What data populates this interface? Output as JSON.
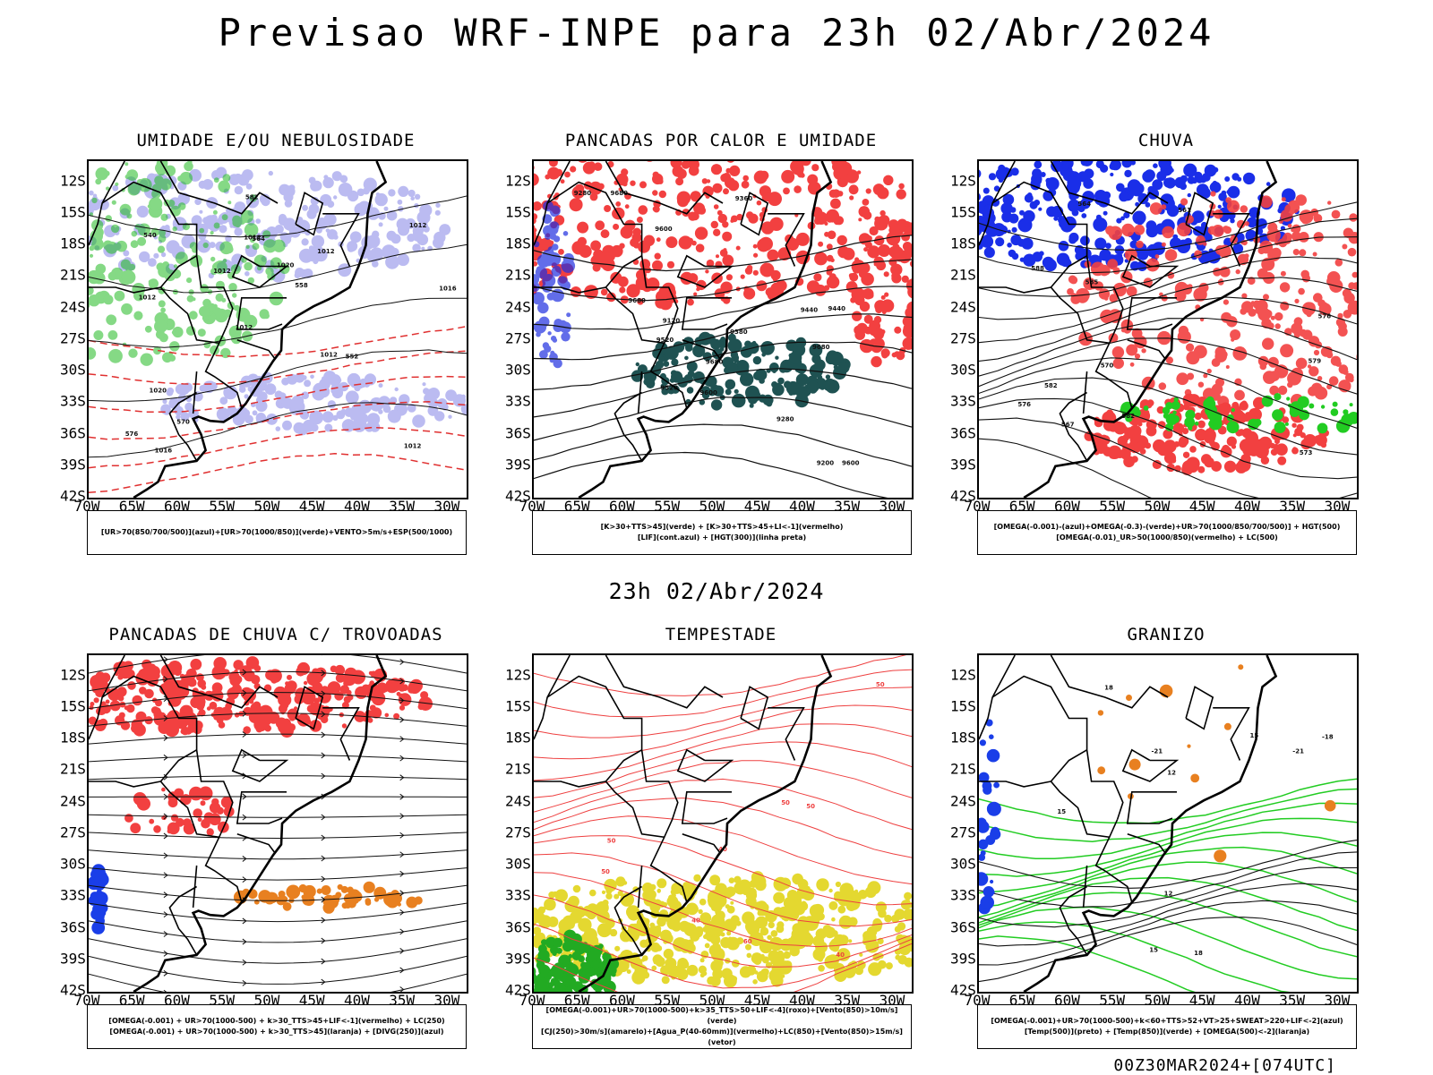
{
  "title": "Previsao WRF-INPE  para 23h 02/Abr/2024",
  "mid_time": "23h 02/Abr/2024",
  "run_stamp": "00Z30MAR2024+[074UTC]",
  "axes": {
    "lat_ticks": [
      "12S",
      "15S",
      "18S",
      "21S",
      "24S",
      "27S",
      "30S",
      "33S",
      "36S",
      "39S",
      "42S"
    ],
    "lon_ticks": [
      "70W",
      "65W",
      "60W",
      "55W",
      "50W",
      "45W",
      "40W",
      "35W",
      "30W"
    ],
    "lon_range": [
      -70,
      -28
    ],
    "lat_range": [
      -42,
      -10
    ]
  },
  "chart_data": [
    {
      "type": "heatmap",
      "title": "UMIDADE E/OU NEBULOSIDADE",
      "caption": [
        "[UR>70(850/700/500)](azul)+[UR>70(1000/850)](verde)+VENTO>5m/s+ESP(500/1000)"
      ],
      "colors": {
        "blue": "#b4b4f0",
        "green": "#22bb22",
        "red_dash": "#e03030"
      },
      "contour_labels": [
        "1012",
        "1012",
        "1012",
        "1012",
        "1012",
        "1016",
        "1012",
        "1020",
        "1020",
        "1012",
        "576",
        "570",
        "564",
        "558",
        "552",
        "540",
        "582",
        "1016",
        "1012"
      ]
    },
    {
      "type": "heatmap",
      "title": "PANCADAS POR CALOR E UMIDADE",
      "caption": [
        "[K>30+TTS>45](verde) + [K>30+TTS>45+LI<-1](vermelho)",
        "[LIF](cont.azul) + [HGT(300)](linha preta)"
      ],
      "colors": {
        "red": "#f24040",
        "darkgreen": "#1f5252",
        "blue": "#2030e0"
      },
      "contour_labels": [
        "9680",
        "9680",
        "9680",
        "9680",
        "9600",
        "9600",
        "9600",
        "9520",
        "9520",
        "9440",
        "9440",
        "9360",
        "9280",
        "9200",
        "9120",
        "9280",
        "9380"
      ]
    },
    {
      "type": "heatmap",
      "title": "CHUVA",
      "caption": [
        "[OMEGA(-0.001)-(azul)+OMEGA(-0.3)-(verde)+UR>70(1000/850/700/500)] + HGT(500)",
        "[OMEGA(-0.01)_UR>50(1000/850)(vermelho) + LC(500)"
      ],
      "colors": {
        "blue": "#1a2ee8",
        "green": "#22cc22",
        "red": "#f24040"
      },
      "contour_labels": [
        "585",
        "582",
        "588",
        "582",
        "579",
        "576",
        "573",
        "570",
        "567",
        "564",
        "561",
        "576"
      ]
    },
    {
      "type": "heatmap",
      "title": "PANCADAS DE CHUVA C/ TROVOADAS",
      "caption": [
        "[OMEGA(-0.001) + UR>70(1000-500) + k>30_TTS>45+LIF<-1](vermelho) + LC(250)",
        "[OMEGA(-0.001) + UR>70(1000-500) + k>30_TTS>45](laranja) + [DIVG(250)](azul)"
      ],
      "colors": {
        "red": "#f24040",
        "orange": "#e88020",
        "blue": "#1a3ee8"
      },
      "contour_labels": []
    },
    {
      "type": "heatmap",
      "title": "TEMPESTADE",
      "caption": [
        "[OMEGA(-0.001)+UR>70(1000-500)+k>35_TTS>50+LIF<-4](roxo)+[Vento(850)>10m/s](verde)",
        "[CJ(250)>30m/s](amarelo)+[Agua_P(40-60mm)](vermelho)+LC(850)+[Vento(850)>15m/s](vetor)"
      ],
      "colors": {
        "yellow": "#e4d830",
        "red": "#ee4040",
        "green": "#22aa22"
      },
      "contour_labels": [
        "50",
        "50",
        "50",
        "40",
        "40",
        "50",
        "60",
        "40",
        "50"
      ]
    },
    {
      "type": "heatmap",
      "title": "GRANIZO",
      "caption": [
        "[OMEGA(-0.001)+UR>70(1000-500)+k<60+TTS>52+VT>25+SWEAT>220+LIF<-2](azul)",
        "[Temp(500)](preto) + [Temp(850)](verde) + [OMEGA(500)<-2](laranja)"
      ],
      "colors": {
        "green": "#22cc22",
        "blue": "#1a3ee8",
        "orange": "#e88020"
      },
      "contour_labels": [
        "15",
        "18",
        "12",
        "15",
        "12",
        "-18",
        "-21",
        "-21",
        "15",
        "18"
      ]
    }
  ]
}
